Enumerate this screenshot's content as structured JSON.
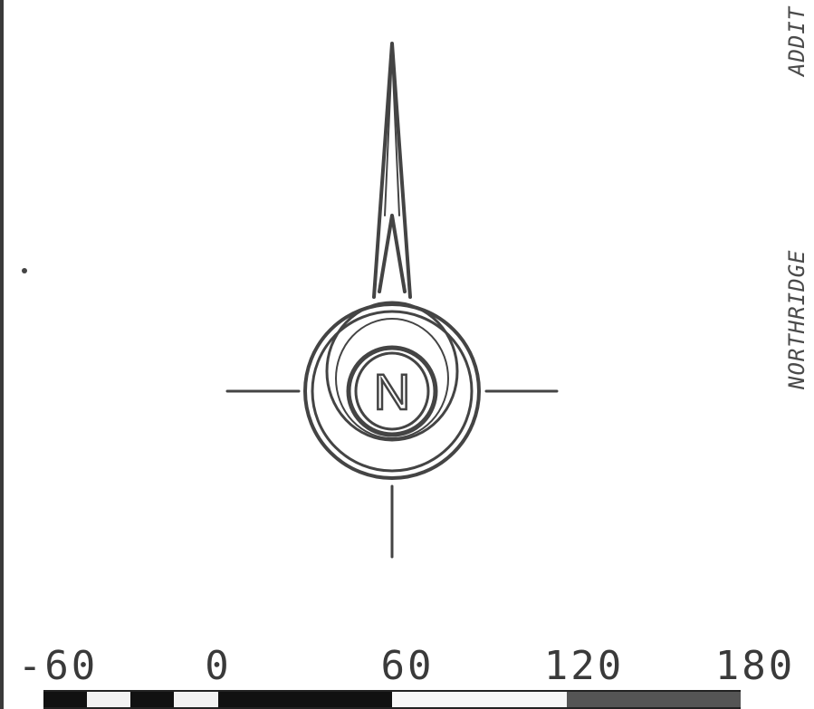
{
  "map": {
    "labels": {
      "northridge": "NORTHRIDGE",
      "addition_partial": "ADDIT"
    },
    "north_arrow": {
      "letter": "N"
    },
    "scale": {
      "ticks": [
        "-60",
        "0",
        "60",
        "120",
        "180"
      ],
      "segments": [
        {
          "color": "#111111",
          "length": 1
        },
        {
          "color": "#f2f2f2",
          "length": 1
        },
        {
          "color": "#111111",
          "length": 1
        },
        {
          "color": "#f2f2f2",
          "length": 1
        },
        {
          "color": "#111111",
          "length": 4
        },
        {
          "color": "#f7f7f7",
          "length": 4
        },
        {
          "color": "#555555",
          "length": 4
        }
      ]
    }
  },
  "colors": {
    "ink": "#444444",
    "frame": "#3a3a3a"
  }
}
